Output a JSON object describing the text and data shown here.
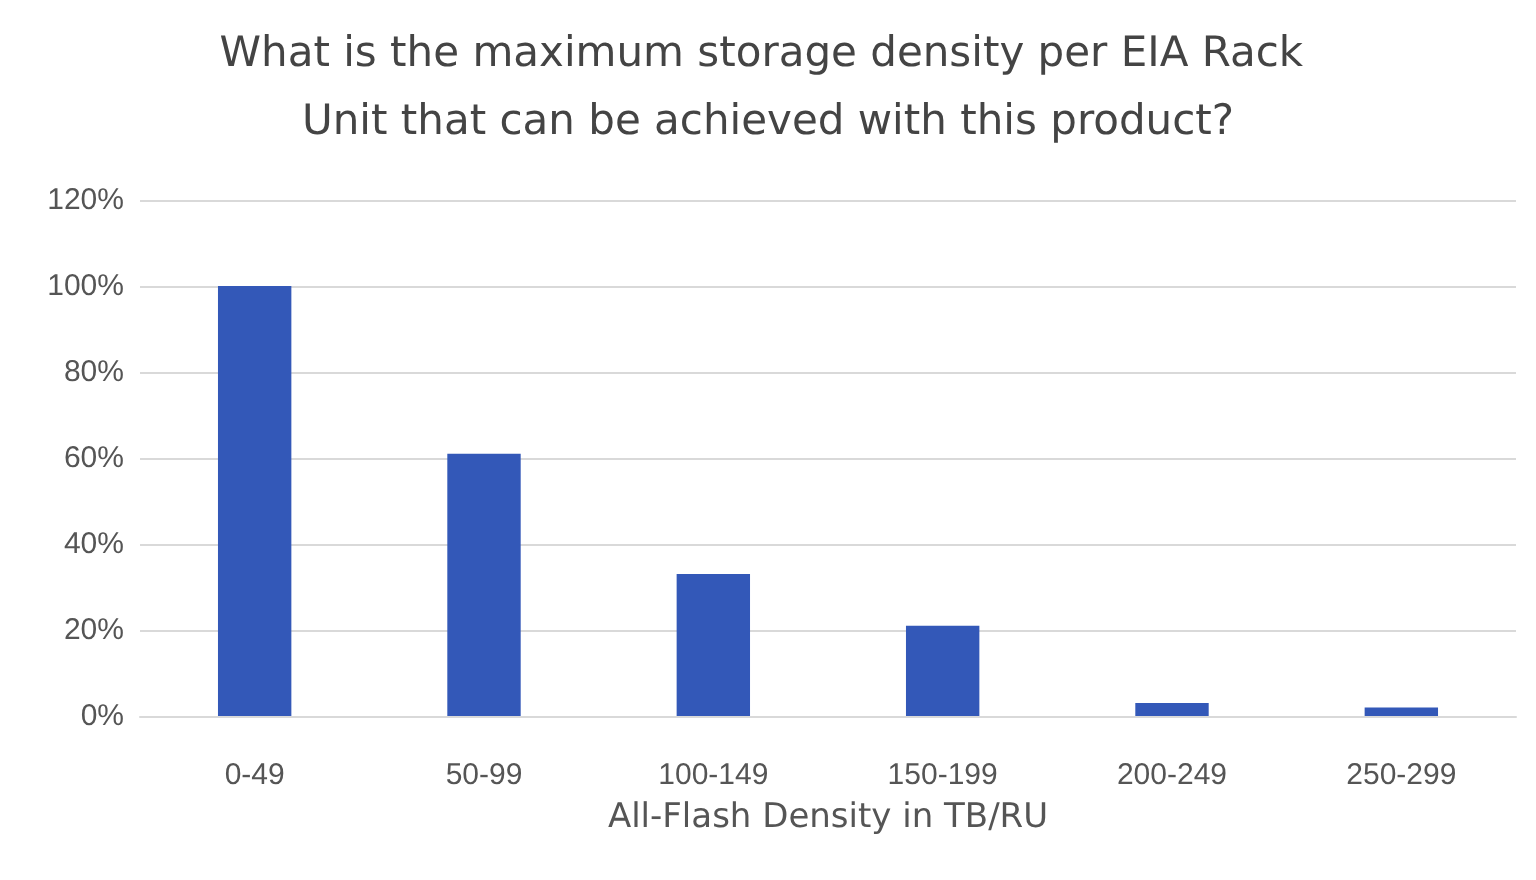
{
  "chart_data": {
    "type": "bar",
    "title": "What is the maximum storage density per EIA Rack Unit that can be achieved with this product?",
    "xlabel": "All-Flash Density in TB/RU",
    "categories": [
      "0-49",
      "50-99",
      "100-149",
      "150-199",
      "200-249",
      "250-299"
    ],
    "values": [
      100,
      61,
      33,
      21,
      3,
      2
    ],
    "color": "#3358b8",
    "ylim": [
      0,
      120
    ],
    "yticks": [
      {
        "value": 0,
        "label": "0%"
      },
      {
        "value": 20,
        "label": "20%"
      },
      {
        "value": 40,
        "label": "40%"
      },
      {
        "value": 60,
        "label": "60%"
      },
      {
        "value": 80,
        "label": "80%"
      },
      {
        "value": 100,
        "label": "100%"
      },
      {
        "value": 120,
        "label": "120%"
      }
    ],
    "grid": "y"
  }
}
